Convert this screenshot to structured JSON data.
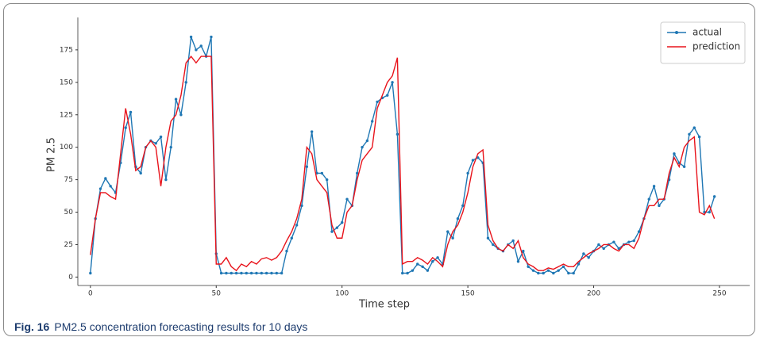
{
  "chart_data": {
    "type": "line",
    "xlabel": "Time step",
    "ylabel": "PM 2.5",
    "x": [
      0,
      2,
      4,
      6,
      8,
      10,
      12,
      14,
      16,
      18,
      20,
      22,
      24,
      26,
      28,
      30,
      32,
      34,
      36,
      38,
      40,
      42,
      44,
      46,
      48,
      50,
      52,
      54,
      56,
      58,
      60,
      62,
      64,
      66,
      68,
      70,
      72,
      74,
      76,
      78,
      80,
      82,
      84,
      86,
      88,
      90,
      92,
      94,
      96,
      98,
      100,
      102,
      104,
      106,
      108,
      110,
      112,
      114,
      116,
      118,
      120,
      122,
      124,
      126,
      128,
      130,
      132,
      134,
      136,
      138,
      140,
      142,
      144,
      146,
      148,
      150,
      152,
      154,
      156,
      158,
      160,
      162,
      164,
      166,
      168,
      170,
      172,
      174,
      176,
      178,
      180,
      182,
      184,
      186,
      188,
      190,
      192,
      194,
      196,
      198,
      200,
      202,
      204,
      206,
      208,
      210,
      212,
      214,
      216,
      218,
      220,
      222,
      224,
      226,
      228,
      230,
      232,
      234,
      236,
      238,
      240,
      242,
      244,
      246,
      248
    ],
    "series": [
      {
        "name": "actual",
        "color": "#1f77b4",
        "marker": true,
        "values": [
          3,
          45,
          68,
          76,
          70,
          65,
          88,
          115,
          127,
          85,
          80,
          100,
          105,
          103,
          108,
          75,
          100,
          137,
          125,
          150,
          185,
          175,
          178,
          170,
          185,
          18,
          3,
          3,
          3,
          3,
          3,
          3,
          3,
          3,
          3,
          3,
          3,
          3,
          3,
          20,
          30,
          40,
          55,
          85,
          112,
          80,
          80,
          75,
          35,
          38,
          42,
          60,
          55,
          80,
          100,
          105,
          120,
          135,
          138,
          140,
          150,
          110,
          3,
          3,
          5,
          10,
          8,
          5,
          12,
          15,
          10,
          35,
          30,
          45,
          55,
          80,
          90,
          92,
          88,
          30,
          25,
          22,
          20,
          25,
          28,
          12,
          20,
          8,
          5,
          3,
          3,
          5,
          3,
          5,
          8,
          3,
          3,
          10,
          18,
          15,
          20,
          25,
          22,
          25,
          27,
          22,
          25,
          27,
          28,
          35,
          45,
          60,
          70,
          55,
          60,
          75,
          95,
          88,
          85,
          110,
          115,
          108,
          50,
          50,
          62
        ]
      },
      {
        "name": "prediction",
        "color": "#e8131b",
        "marker": false,
        "values": [
          17,
          45,
          65,
          65,
          62,
          60,
          95,
          130,
          110,
          82,
          85,
          100,
          105,
          100,
          70,
          100,
          120,
          125,
          140,
          165,
          170,
          165,
          170,
          170,
          170,
          10,
          10,
          15,
          8,
          5,
          10,
          8,
          12,
          10,
          14,
          15,
          13,
          15,
          20,
          28,
          35,
          45,
          60,
          100,
          95,
          75,
          70,
          65,
          40,
          30,
          30,
          50,
          55,
          75,
          90,
          95,
          100,
          130,
          140,
          150,
          155,
          169,
          10,
          12,
          12,
          15,
          13,
          10,
          15,
          12,
          8,
          25,
          35,
          40,
          50,
          65,
          85,
          95,
          98,
          40,
          28,
          22,
          20,
          25,
          22,
          28,
          15,
          10,
          8,
          5,
          5,
          7,
          6,
          8,
          10,
          8,
          8,
          12,
          15,
          18,
          20,
          22,
          25,
          25,
          22,
          20,
          25,
          25,
          22,
          30,
          45,
          55,
          55,
          60,
          60,
          80,
          92,
          85,
          100,
          105,
          108,
          50,
          48,
          55,
          45
        ]
      }
    ],
    "xlim": [
      -5,
      262
    ],
    "ylim": [
      -6.5,
      200
    ],
    "xticks": [
      0,
      50,
      100,
      150,
      200,
      250
    ],
    "yticks": [
      0,
      25,
      50,
      75,
      100,
      125,
      150,
      175
    ],
    "grid": false,
    "legend": "upper right"
  },
  "caption": {
    "label": "Fig. 16",
    "text": "PM2.5 concentration forecasting results for 10 days"
  }
}
